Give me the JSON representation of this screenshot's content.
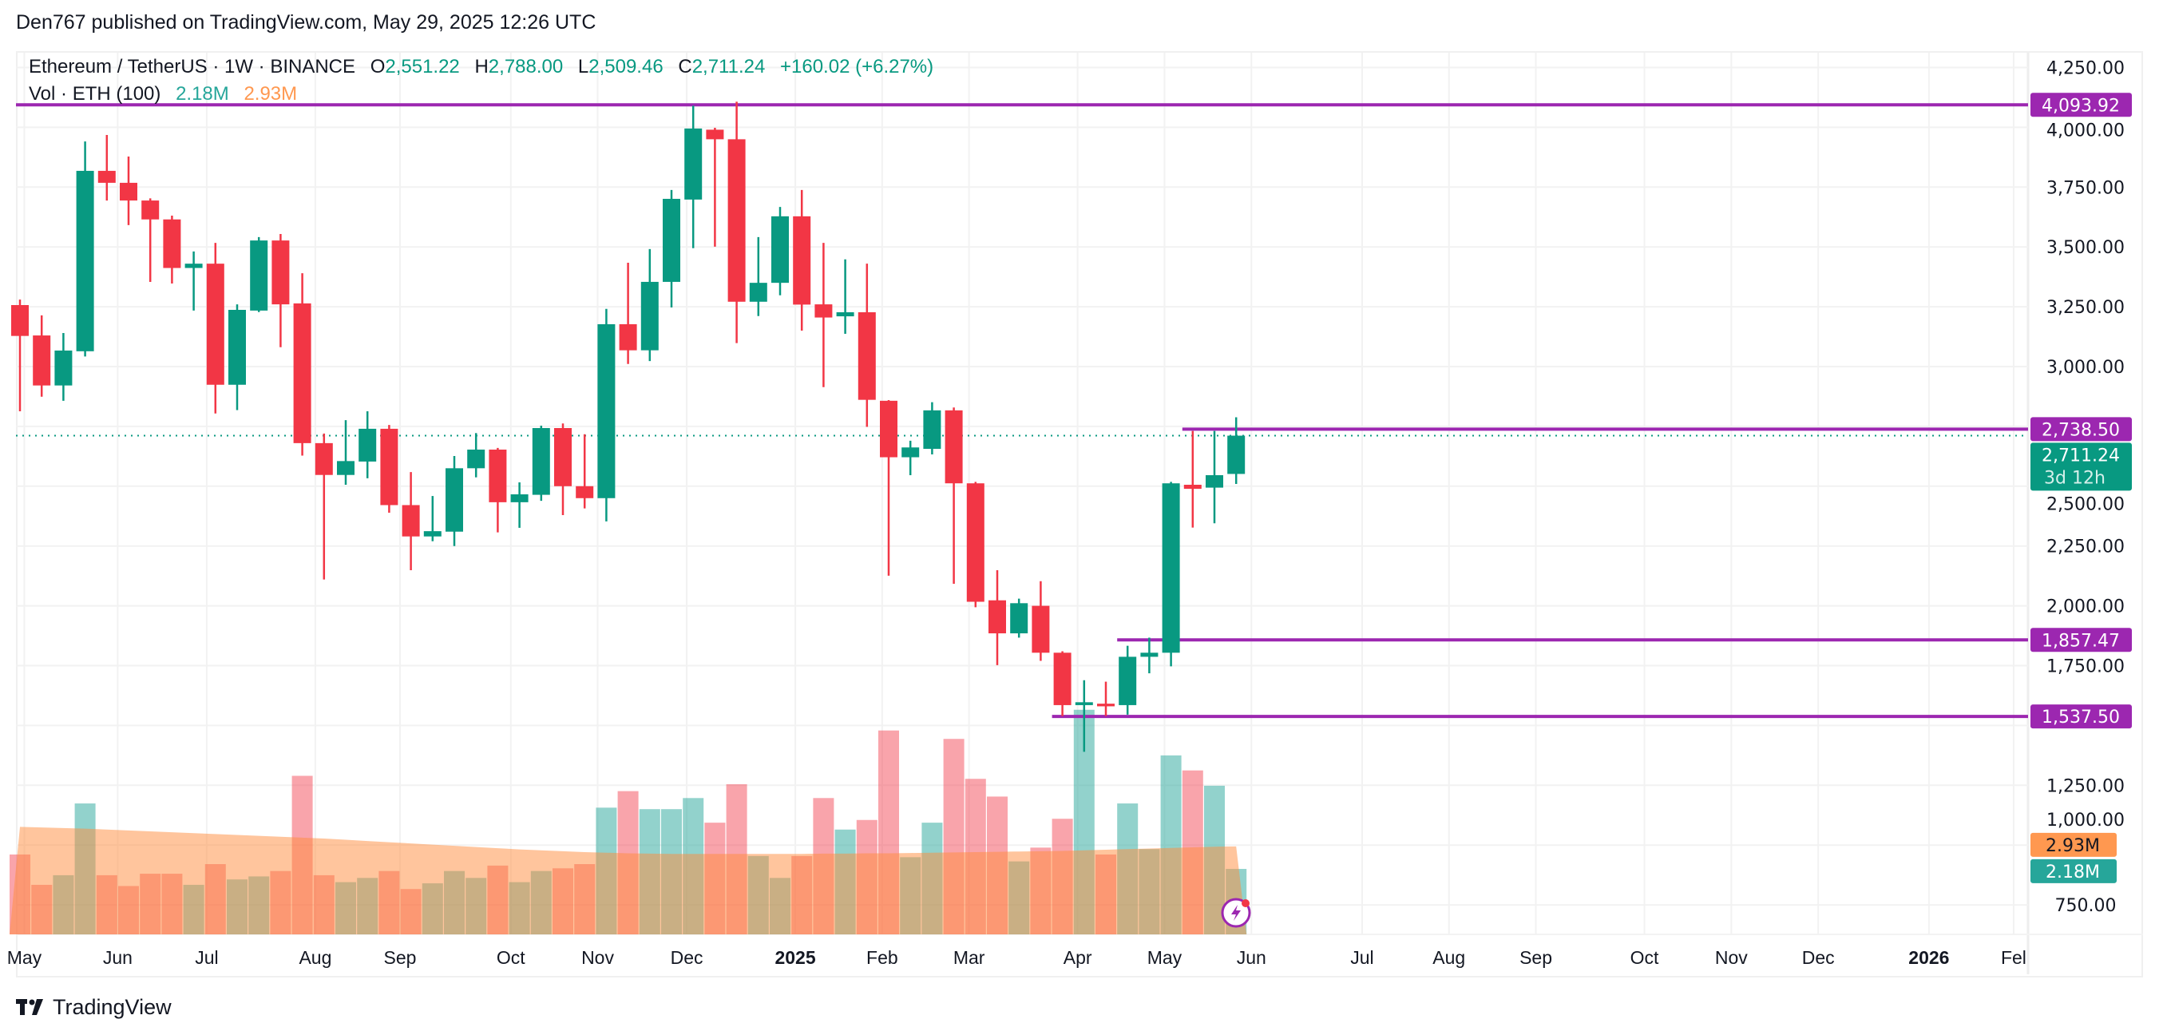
{
  "header": {
    "published": "Den767 published on TradingView.com, May 29, 2025 12:26 UTC"
  },
  "legend": {
    "symbol": "Ethereum / TetherUS · 1W · BINANCE",
    "o_label": "O",
    "o": "2,551.22",
    "h_label": "H",
    "h": "2,788.00",
    "l_label": "L",
    "l": "2,509.46",
    "c_label": "C",
    "c": "2,711.24",
    "change": "+160.02 (+6.27%)",
    "vol_label": "Vol · ETH (100)",
    "vol": "2.18M",
    "vol_ma": "2.93M"
  },
  "footer": {
    "brand": "TradingView"
  },
  "colors": {
    "up": "#089981",
    "down": "#f23645",
    "level": "#9c27b0",
    "vol_up": "#26a69a",
    "vol_ma": "#ff9850"
  },
  "chart_data": {
    "type": "candlestick",
    "title": "Ethereum / TetherUS · 1W · BINANCE",
    "ylim": [
      650,
      4330
    ],
    "y_ticks": [
      4250,
      4000,
      3750,
      3500,
      3250,
      3000,
      2750,
      2500,
      2250,
      2000,
      1750,
      1500,
      1250,
      1000,
      750
    ],
    "y_tick_labels": [
      "4,250.00",
      "4,000.00",
      "3,750.00",
      "3,500.00",
      "3,250.00",
      "3,000.00",
      "",
      "2,500.00",
      "2,250.00",
      "2,000.00",
      "1,750.00",
      "",
      "1,250.00",
      "1,000.00",
      "750.00"
    ],
    "x_labels": [
      {
        "label": "May",
        "week": 0.2
      },
      {
        "label": "Jun",
        "week": 4.5
      },
      {
        "label": "Jul",
        "week": 8.6
      },
      {
        "label": "Aug",
        "week": 13.6
      },
      {
        "label": "Sep",
        "week": 17.5
      },
      {
        "label": "Oct",
        "week": 22.6
      },
      {
        "label": "Nov",
        "week": 26.6
      },
      {
        "label": "Dec",
        "week": 30.7
      },
      {
        "label": "2025",
        "week": 35.7,
        "bold": true
      },
      {
        "label": "Feb",
        "week": 39.7
      },
      {
        "label": "Mar",
        "week": 43.7
      },
      {
        "label": "Apr",
        "week": 48.7
      },
      {
        "label": "May",
        "week": 52.7
      },
      {
        "label": "Jun",
        "week": 56.7
      },
      {
        "label": "Jul",
        "week": 61.8
      },
      {
        "label": "Aug",
        "week": 65.8
      },
      {
        "label": "Sep",
        "week": 69.8
      },
      {
        "label": "Oct",
        "week": 74.8
      },
      {
        "label": "Nov",
        "week": 78.8
      },
      {
        "label": "Dec",
        "week": 82.8
      },
      {
        "label": "2026",
        "week": 87.9,
        "bold": true
      },
      {
        "label": "Fel",
        "week": 91.8
      }
    ],
    "ohlc": [
      [
        3257,
        3280,
        2813,
        3128
      ],
      [
        3130,
        3214,
        2874,
        2921
      ],
      [
        2921,
        3140,
        2857,
        3067
      ],
      [
        3064,
        3941,
        3042,
        3818
      ],
      [
        3818,
        3968,
        3694,
        3768
      ],
      [
        3768,
        3878,
        3591,
        3694
      ],
      [
        3694,
        3703,
        3354,
        3615
      ],
      [
        3615,
        3631,
        3347,
        3412
      ],
      [
        3412,
        3481,
        3234,
        3430
      ],
      [
        3430,
        3517,
        2804,
        2924
      ],
      [
        2924,
        3260,
        2818,
        3237
      ],
      [
        3234,
        3541,
        3228,
        3527
      ],
      [
        3527,
        3554,
        3081,
        3260
      ],
      [
        3264,
        3390,
        2628,
        2680
      ],
      [
        2680,
        2720,
        2110,
        2547
      ],
      [
        2547,
        2776,
        2506,
        2605
      ],
      [
        2603,
        2813,
        2533,
        2740
      ],
      [
        2740,
        2756,
        2389,
        2421
      ],
      [
        2421,
        2559,
        2149,
        2290
      ],
      [
        2290,
        2459,
        2270,
        2312
      ],
      [
        2310,
        2626,
        2250,
        2575
      ],
      [
        2575,
        2722,
        2537,
        2653
      ],
      [
        2653,
        2660,
        2307,
        2433
      ],
      [
        2433,
        2516,
        2326,
        2466
      ],
      [
        2464,
        2753,
        2439,
        2743
      ],
      [
        2743,
        2762,
        2379,
        2500
      ],
      [
        2500,
        2717,
        2407,
        2450
      ],
      [
        2450,
        3241,
        2353,
        3177
      ],
      [
        3177,
        3434,
        3011,
        3068
      ],
      [
        3068,
        3491,
        3023,
        3354
      ],
      [
        3354,
        3738,
        3247,
        3701
      ],
      [
        3698,
        4090,
        3495,
        3995
      ],
      [
        3990,
        3998,
        3501,
        3950
      ],
      [
        3950,
        4107,
        3098,
        3271
      ],
      [
        3271,
        3541,
        3211,
        3350
      ],
      [
        3350,
        3667,
        3298,
        3628
      ],
      [
        3628,
        3738,
        3150,
        3259
      ],
      [
        3260,
        3517,
        2914,
        3205
      ],
      [
        3210,
        3448,
        3137,
        3227
      ],
      [
        3227,
        3430,
        2748,
        2861
      ],
      [
        2857,
        2860,
        2126,
        2621
      ],
      [
        2621,
        2690,
        2546,
        2662
      ],
      [
        2656,
        2851,
        2633,
        2817
      ],
      [
        2817,
        2829,
        2092,
        2512
      ],
      [
        2512,
        2518,
        1994,
        2017
      ],
      [
        2023,
        2149,
        1752,
        1885
      ],
      [
        1885,
        2030,
        1867,
        2011
      ],
      [
        2000,
        2103,
        1770,
        1804
      ],
      [
        1804,
        1810,
        1539,
        1585
      ],
      [
        1585,
        1689,
        1390,
        1597
      ],
      [
        1591,
        1683,
        1539,
        1580
      ],
      [
        1585,
        1833,
        1545,
        1787
      ],
      [
        1787,
        1867,
        1718,
        1804
      ],
      [
        1804,
        2518,
        1747,
        2512
      ],
      [
        2506,
        2731,
        2327,
        2489
      ],
      [
        2494,
        2731,
        2345,
        2546
      ],
      [
        2551.22,
        2788.0,
        2509.46,
        2711.24
      ]
    ],
    "volume_millions": [
      2.66,
      1.65,
      1.97,
      4.36,
      1.97,
      1.61,
      2.02,
      2.02,
      1.65,
      2.34,
      1.83,
      1.93,
      2.11,
      5.28,
      1.97,
      1.74,
      1.88,
      2.11,
      1.51,
      1.7,
      2.11,
      1.88,
      2.29,
      1.74,
      2.11,
      2.2,
      2.34,
      4.22,
      4.77,
      4.17,
      4.17,
      4.54,
      3.72,
      5.0,
      2.61,
      1.88,
      2.61,
      4.54,
      3.49,
      3.81,
      6.79,
      2.57,
      3.72,
      6.51,
      5.18,
      4.59,
      2.43,
      2.89,
      3.85,
      7.48,
      2.66,
      4.36,
      2.84,
      5.96,
      5.46,
      4.95,
      2.18
    ],
    "volume_ma_millions": [
      3.58,
      3.56,
      3.54,
      3.52,
      3.49,
      3.46,
      3.43,
      3.4,
      3.37,
      3.34,
      3.31,
      3.28,
      3.25,
      3.22,
      3.19,
      3.15,
      3.11,
      3.07,
      3.03,
      2.99,
      2.95,
      2.91,
      2.87,
      2.83,
      2.8,
      2.77,
      2.74,
      2.72,
      2.7,
      2.69,
      2.68,
      2.68,
      2.68,
      2.68,
      2.68,
      2.68,
      2.68,
      2.69,
      2.69,
      2.7,
      2.7,
      2.71,
      2.72,
      2.73,
      2.74,
      2.75,
      2.76,
      2.77,
      2.78,
      2.8,
      2.82,
      2.84,
      2.86,
      2.88,
      2.9,
      2.92,
      2.93
    ],
    "levels": [
      {
        "value": 4093.92,
        "label": "4,093.92",
        "from_week": 0
      },
      {
        "value": 2738.5,
        "label": "2,738.50",
        "from_week": 54
      },
      {
        "value": 1857.47,
        "label": "1,857.47",
        "from_week": 51
      },
      {
        "value": 1537.5,
        "label": "1,537.50",
        "from_week": 48
      }
    ],
    "last_price": {
      "value": 2711.24,
      "label": "2,711.24",
      "countdown": "3d 12h"
    },
    "volume_tags": {
      "ma": "2.93M",
      "vol": "2.18M"
    }
  }
}
